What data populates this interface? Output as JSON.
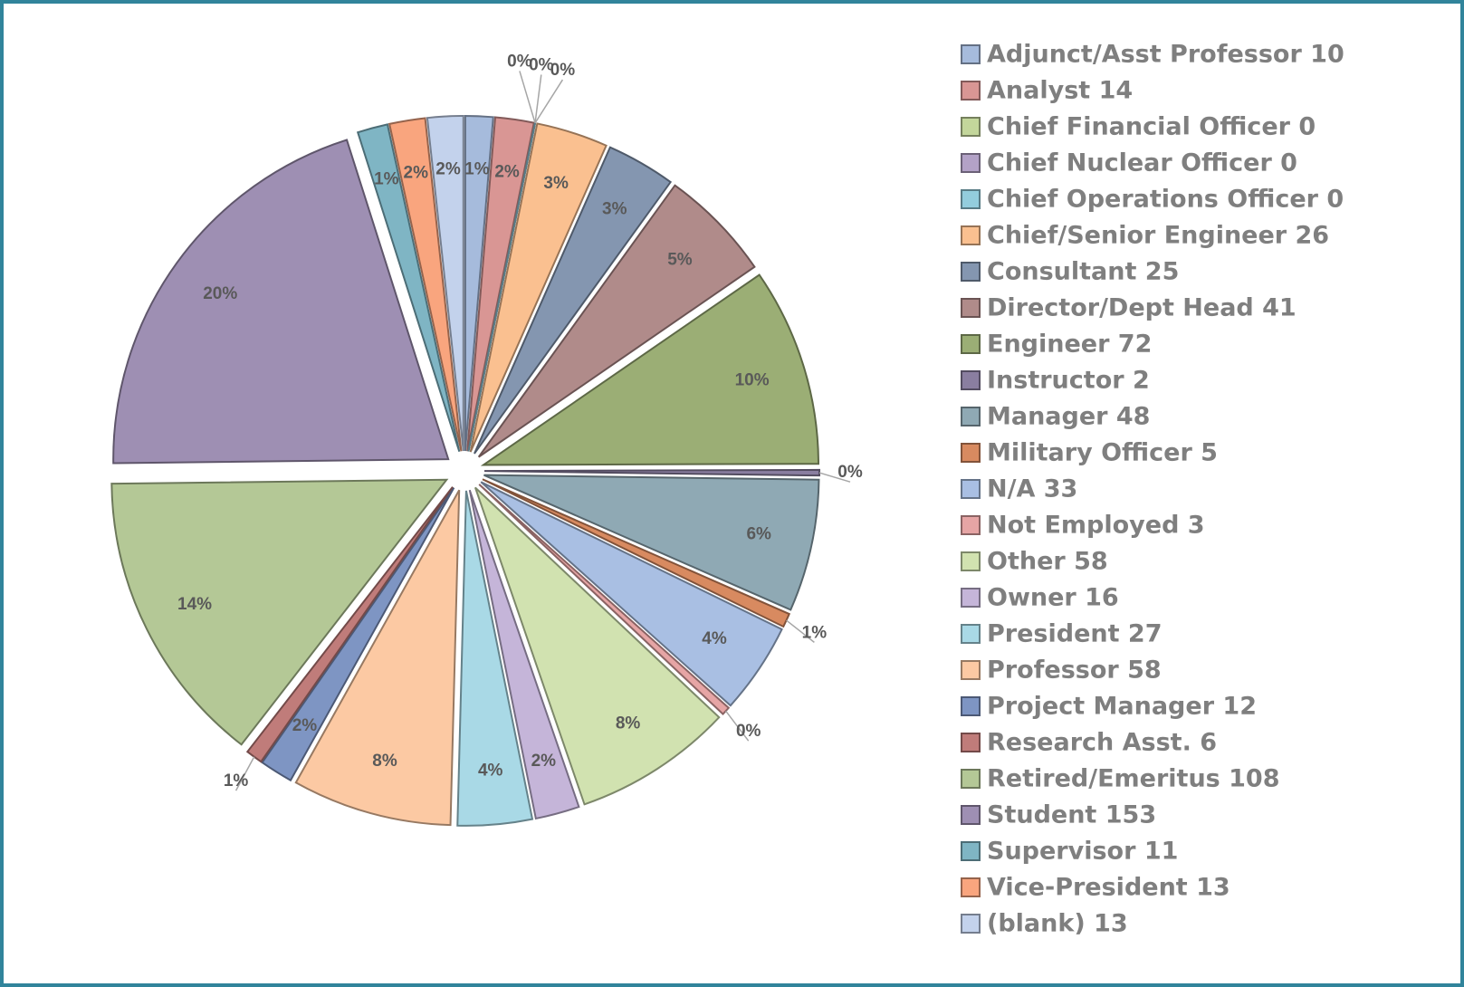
{
  "chart_data": {
    "type": "pie",
    "categories": [
      "Adjunct/Asst Professor 10",
      "Analyst 14",
      "Chief Financial Officer 0",
      "Chief Nuclear Officer 0",
      "Chief Operations Officer 0",
      "Chief/Senior Engineer 26",
      "Consultant 25",
      "Director/Dept Head 41",
      "Engineer 72",
      "Instructor 2",
      "Manager 48",
      "Military Officer 5",
      "N/A  33",
      "Not Employed  3",
      "Other 58",
      "Owner 16",
      "President 27",
      "Professor 58",
      "Project Manager 12",
      "Research Asst. 6",
      "Retired/Emeritus 108",
      "Student 153",
      "Supervisor 11",
      "Vice-President 13",
      "(blank) 13"
    ],
    "values": [
      1.33,
      1.86,
      0,
      0,
      0,
      3.45,
      3.32,
      5.44,
      9.55,
      0.27,
      6.37,
      0.66,
      4.38,
      0.4,
      7.69,
      2.12,
      3.58,
      7.69,
      1.59,
      0.8,
      14.32,
      20.29,
      1.46,
      1.72,
      1.72
    ],
    "value_labels": [
      "1%",
      "2%",
      "0%",
      "0%",
      "0%",
      "3%",
      "3%",
      "5%",
      "10%",
      "0%",
      "6%",
      "1%",
      "4%",
      "0%",
      "8%",
      "2%",
      "4%",
      "8%",
      "2%",
      "1%",
      "14%",
      "20%",
      "1%",
      "2%",
      "2%"
    ],
    "colors": [
      "#a6bbdc",
      "#d99694",
      "#c3d69b",
      "#b3a2c7",
      "#93cddd",
      "#fac090",
      "#8496b0",
      "#b08b8a",
      "#9bae75",
      "#8a7ea0",
      "#8fa9b4",
      "#d88a60",
      "#a9bfe3",
      "#e6a5a5",
      "#d1e2b0",
      "#c5b5d9",
      "#a9d9e6",
      "#fcc9a3",
      "#7e95c3",
      "#c07c7a",
      "#b4c896",
      "#9e8fb3",
      "#7fb5c4",
      "#f9a57e",
      "#c3d2ec"
    ],
    "legend": "right"
  }
}
